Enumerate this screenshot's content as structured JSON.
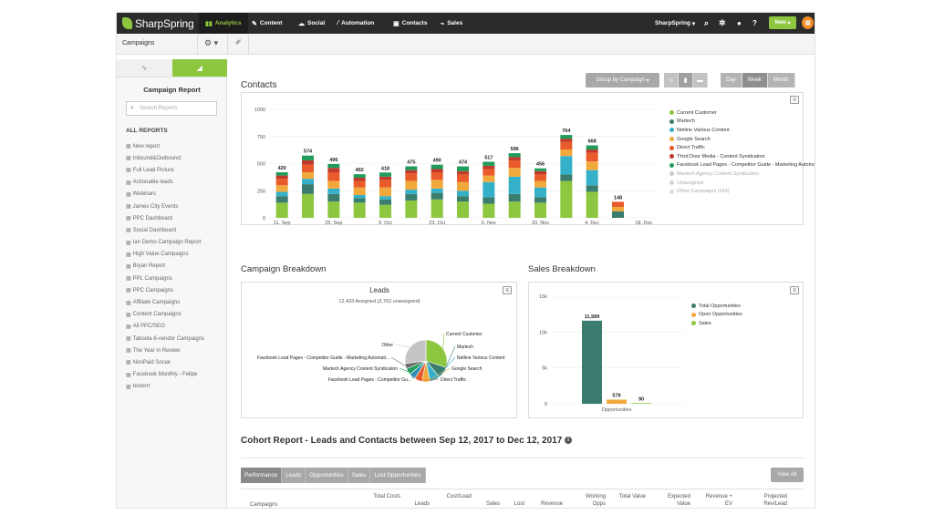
{
  "app": {
    "brand": "SharpSpring",
    "nav": [
      {
        "label": "Analytics",
        "icon": "bar-chart-icon"
      },
      {
        "label": "Content",
        "icon": "pencil-icon"
      },
      {
        "label": "Social",
        "icon": "chat-icon"
      },
      {
        "label": "Automation",
        "icon": "wand-icon"
      },
      {
        "label": "Contacts",
        "icon": "contact-card-icon"
      },
      {
        "label": "Sales",
        "icon": "trend-icon"
      }
    ],
    "account_menu": "SharpSpring",
    "new_button": "New"
  },
  "subheader": {
    "title": "Campaigns"
  },
  "sidebar": {
    "title": "Campaign Report",
    "search_placeholder": "Search Reports",
    "section_heading": "ALL REPORTS",
    "items": [
      "New report",
      "Inbound&Outbound;",
      "Full Lead Picture",
      "Actionable leads",
      "Webinars",
      "James City Events",
      "PPC Dashboard",
      "Social Dashboard",
      "Ian Demo Campaign Report",
      "High Value Campaigns",
      "Bryan Report",
      "PPL Campaigns",
      "PPC Campaigns",
      "Affiliate Campaigns",
      "Content Campaigns",
      "All PPC/SEO",
      "Taboola 6-vendor Campaigns",
      "The Year in Review",
      "NonPaid Social",
      "Facebook Monthly - Felipe",
      "testerrr"
    ]
  },
  "contacts": {
    "title": "Contacts",
    "group_button": "Group by Campaign",
    "periods": [
      "Day",
      "Week",
      "Month"
    ],
    "active_period": "Week"
  },
  "chart_data": [
    {
      "type": "bar",
      "stacked": true,
      "ylim": [
        0,
        1000
      ],
      "yticks": [
        0,
        250,
        500,
        750,
        1000
      ],
      "categories": [
        "11. Sep",
        "18. Sep",
        "25. Sep",
        "2. Oct",
        "9. Oct",
        "16. Oct",
        "23. Oct",
        "30. Oct",
        "6. Nov",
        "13. Nov",
        "20. Nov",
        "27. Nov",
        "4. Dec",
        "11. Dec",
        "18. Dec"
      ],
      "xtick_labels": [
        "11. Sep",
        "25. Sep",
        "9. Oct",
        "23. Oct",
        "6. Nov",
        "20. Nov",
        "4. Dec",
        "18. Dec"
      ],
      "totals": [
        420,
        574,
        496,
        402,
        418,
        475,
        490,
        474,
        517,
        596,
        456,
        764,
        668,
        148,
        null
      ],
      "series": [
        {
          "name": "Current Customer",
          "color": "#8dc63f",
          "values": [
            140,
            220,
            150,
            140,
            120,
            160,
            170,
            150,
            130,
            150,
            140,
            340,
            240,
            0,
            0
          ]
        },
        {
          "name": "Martech",
          "color": "#3a7d6e",
          "values": [
            60,
            90,
            70,
            40,
            50,
            60,
            60,
            50,
            60,
            70,
            50,
            60,
            60,
            60,
            0
          ]
        },
        {
          "name": "Netline Various Content",
          "color": "#35b0c9",
          "values": [
            40,
            50,
            50,
            30,
            30,
            40,
            40,
            50,
            140,
            160,
            90,
            170,
            140,
            0,
            0
          ]
        },
        {
          "name": "Google Search",
          "color": "#f2a93b",
          "values": [
            60,
            60,
            70,
            70,
            80,
            80,
            80,
            80,
            60,
            80,
            60,
            60,
            80,
            40,
            0
          ]
        },
        {
          "name": "Direct Traffic",
          "color": "#e95b2b",
          "values": [
            60,
            70,
            80,
            60,
            70,
            70,
            70,
            70,
            60,
            70,
            60,
            70,
            80,
            48,
            0
          ]
        },
        {
          "name": "Third Door Media - Content Syndication",
          "color": "#c0392b",
          "values": [
            30,
            40,
            40,
            30,
            30,
            30,
            30,
            30,
            30,
            30,
            30,
            30,
            30,
            0,
            0
          ]
        },
        {
          "name": "Facebook Lead Pages - Competitor Guide - Marketing Automation",
          "color": "#1f9b5a",
          "values": [
            30,
            44,
            36,
            32,
            38,
            35,
            40,
            44,
            37,
            36,
            26,
            34,
            38,
            0,
            0
          ]
        },
        {
          "name": "Martech Agency Content Syndication",
          "color": "#c9c9c9",
          "values": [
            0,
            0,
            0,
            0,
            0,
            0,
            0,
            0,
            0,
            0,
            0,
            0,
            0,
            0,
            0
          ]
        },
        {
          "name": "Unassigned",
          "color": "#d4d4d4",
          "values": [
            0,
            0,
            0,
            0,
            0,
            0,
            0,
            0,
            0,
            0,
            0,
            0,
            0,
            0,
            0
          ]
        },
        {
          "name": "Other Campaigns (143)",
          "color": "#dcdcdc",
          "values": [
            0,
            0,
            0,
            0,
            0,
            0,
            0,
            0,
            0,
            0,
            0,
            0,
            0,
            0,
            0
          ]
        }
      ]
    },
    {
      "type": "pie",
      "title": "Leads",
      "subtitle": "12,433 Assigned (2,762 unassigned)",
      "slices": [
        {
          "label": "Current Customer",
          "color": "#8dc63f",
          "value": 30
        },
        {
          "label": "Martech",
          "color": "#3a7d6e",
          "value": 9
        },
        {
          "label": "Netline Various Content",
          "color": "#35b0c9",
          "value": 8
        },
        {
          "label": "Google Search",
          "color": "#f2a93b",
          "value": 6
        },
        {
          "label": "Direct Traffic",
          "color": "#e95b2b",
          "value": 6
        },
        {
          "label": "Facebook Lead Pages - Competitor Gu...",
          "color": "#2e8fb5",
          "value": 5
        },
        {
          "label": "Martech Agency Content Syndication",
          "color": "#1f9b5a",
          "value": 5
        },
        {
          "label": "Facebook Lead Pages - Competitor Guide - Marketing Automati...",
          "color": "#6c6c6c",
          "value": 4
        },
        {
          "label": "Other",
          "color": "#c5c5c5",
          "value": 27
        }
      ]
    },
    {
      "type": "bar",
      "categories": [
        "Opportunities"
      ],
      "ylim": [
        0,
        15000
      ],
      "yticks": [
        0,
        5000,
        10000,
        15000
      ],
      "ytick_labels": [
        "0",
        "5k",
        "10k",
        "15k"
      ],
      "series": [
        {
          "name": "Total Opportunities",
          "color": "#3a7d6e",
          "values": [
            11589
          ],
          "label": "11,589"
        },
        {
          "name": "Open Opportunities",
          "color": "#f2a93b",
          "values": [
            579
          ],
          "label": "579"
        },
        {
          "name": "Sales",
          "color": "#8dc63f",
          "values": [
            90
          ],
          "label": "90"
        }
      ]
    }
  ],
  "campaign_breakdown": {
    "title": "Campaign Breakdown"
  },
  "sales_breakdown": {
    "title": "Sales Breakdown"
  },
  "cohort": {
    "title": "Cohort Report - Leads and Contacts between Sep 12, 2017 to Dec 12, 2017",
    "tabs": [
      "Performance",
      "Leads",
      "Opportunities",
      "Sales",
      "Lost Opportunities"
    ],
    "view_all": "View All",
    "columns": [
      "Campaigns",
      "Total Costs",
      "Leads",
      "Cost/Lead",
      "Sales",
      "Lost",
      "Revenue",
      "Working Opps",
      "Total Value",
      "Expected Value",
      "Revenue + EV",
      "Projected Rev/Lead"
    ]
  }
}
